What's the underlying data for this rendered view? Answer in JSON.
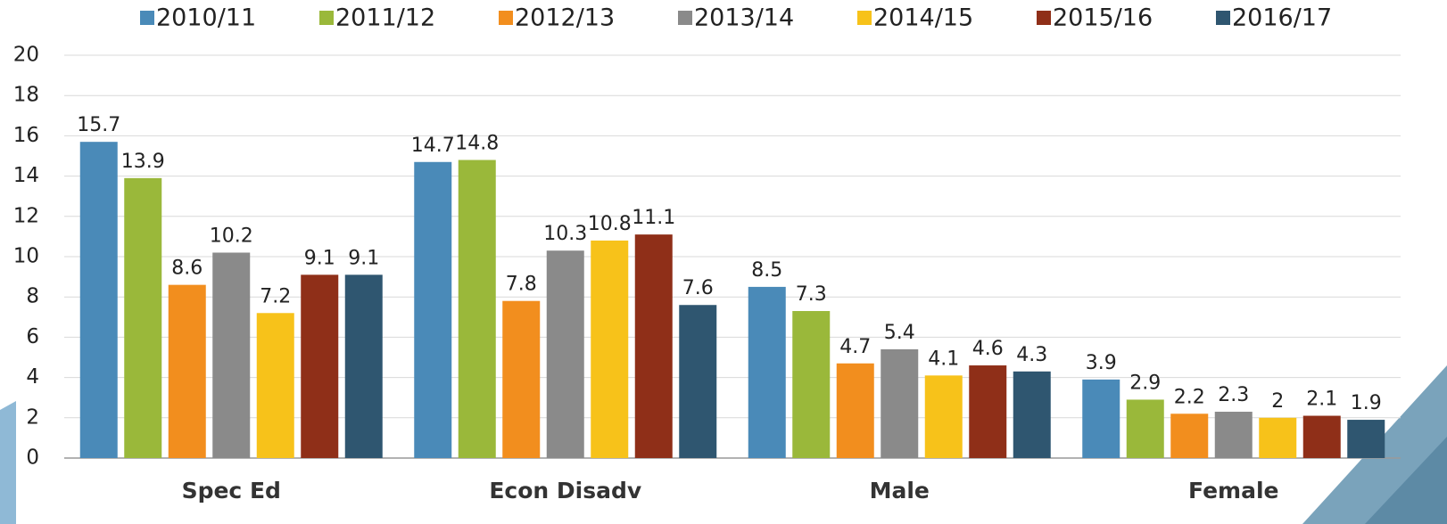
{
  "chart_data": {
    "type": "bar",
    "categories": [
      "Spec Ed",
      "Econ Disadv",
      "Male",
      "Female"
    ],
    "series": [
      {
        "name": "2010/11",
        "color": "#4a8ab8",
        "values": [
          15.7,
          14.7,
          8.5,
          3.9
        ]
      },
      {
        "name": "2011/12",
        "color": "#9ab83a",
        "values": [
          13.9,
          14.8,
          7.3,
          2.9
        ]
      },
      {
        "name": "2012/13",
        "color": "#f28e1e",
        "values": [
          8.6,
          7.8,
          4.7,
          2.2
        ]
      },
      {
        "name": "2013/14",
        "color": "#8a8a8a",
        "values": [
          10.2,
          10.3,
          5.4,
          2.3
        ]
      },
      {
        "name": "2014/15",
        "color": "#f7c21a",
        "values": [
          7.2,
          10.8,
          4.1,
          2
        ]
      },
      {
        "name": "2015/16",
        "color": "#8f2f18",
        "values": [
          9.1,
          11.1,
          4.6,
          2.1
        ]
      },
      {
        "name": "2016/17",
        "color": "#2f5670",
        "values": [
          9.1,
          7.6,
          4.3,
          1.9
        ]
      }
    ],
    "ylim": [
      0,
      20
    ],
    "yticks": [
      0,
      2,
      4,
      6,
      8,
      10,
      12,
      14,
      16,
      18,
      20
    ],
    "grid": true,
    "legend": "top"
  }
}
